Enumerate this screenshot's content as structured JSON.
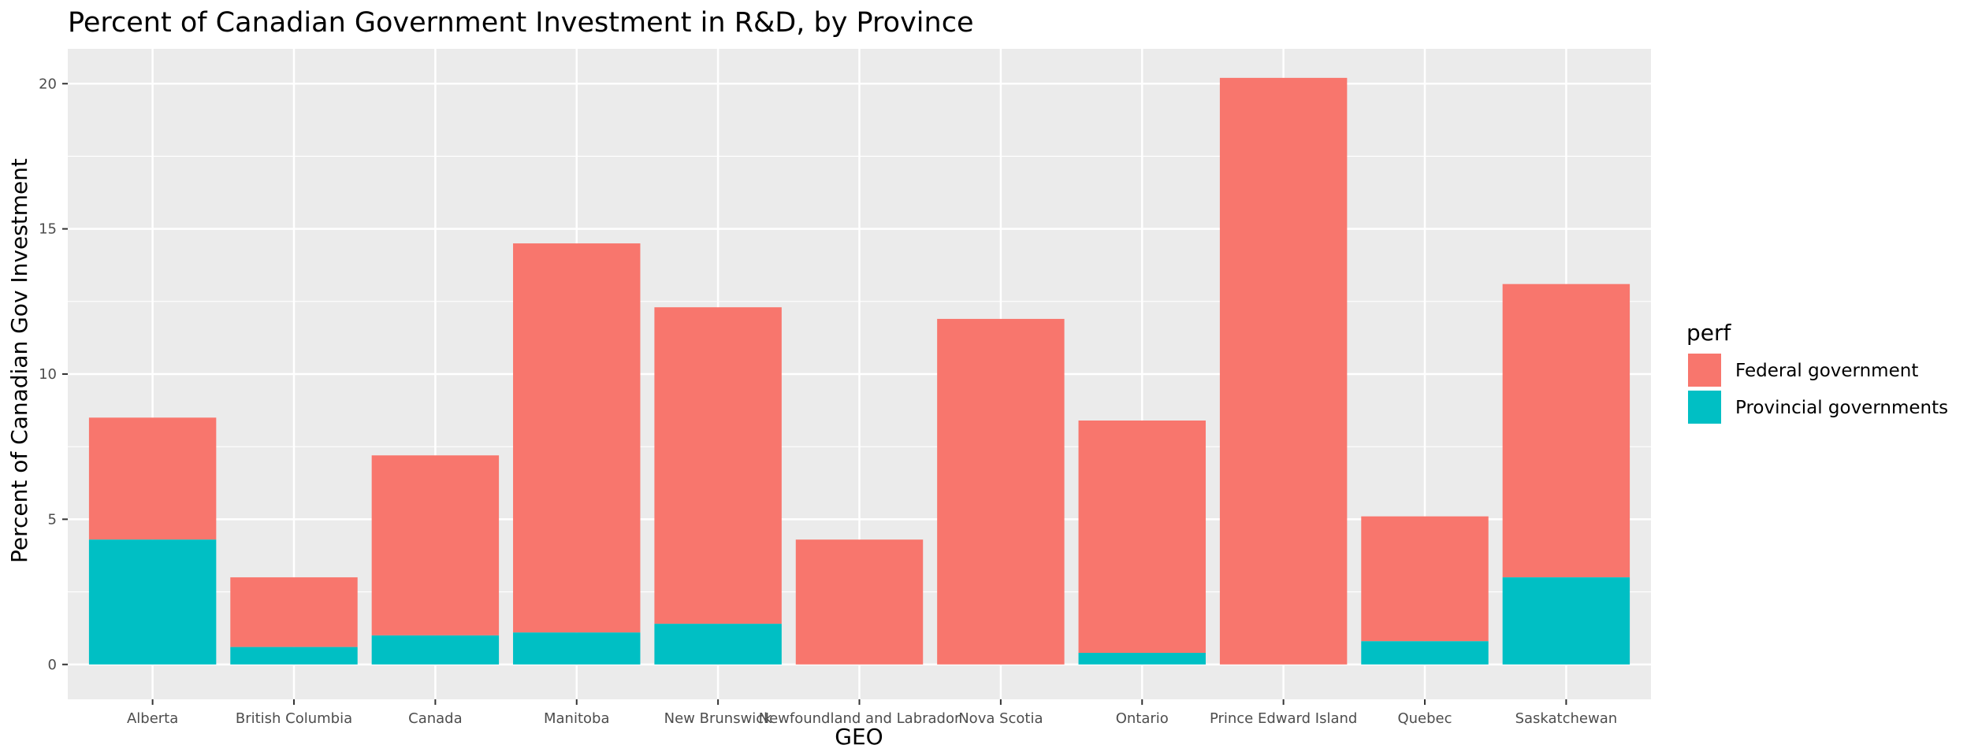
{
  "chart_data": {
    "type": "bar",
    "stacked": true,
    "title": "Percent of Canadian Government Investment in R&D, by Province",
    "xlabel": "GEO",
    "ylabel": "Percent of Canadian Gov Investment",
    "ylim": [
      -1.2,
      21.2
    ],
    "yticks": [
      0,
      5,
      10,
      15,
      20
    ],
    "grid": true,
    "legend_position": "right",
    "legend_title": "perf",
    "categories": [
      "Alberta",
      "British Columbia",
      "Canada",
      "Manitoba",
      "New Brunswick",
      "Newfoundland and Labrador",
      "Nova Scotia",
      "Ontario",
      "Prince Edward Island",
      "Quebec",
      "Saskatchewan"
    ],
    "series": [
      {
        "name": "Federal government",
        "color": "#F8766D",
        "values": [
          4.2,
          2.4,
          6.2,
          13.4,
          10.9,
          4.3,
          11.9,
          8.0,
          20.2,
          4.3,
          10.1
        ]
      },
      {
        "name": "Provincial governments",
        "color": "#00BFC4",
        "values": [
          4.3,
          0.6,
          1.0,
          1.1,
          1.4,
          0.0,
          0.0,
          0.4,
          0.0,
          0.8,
          3.0
        ]
      }
    ],
    "panel_background": "#EBEBEB",
    "grid_color": "#FFFFFF"
  }
}
